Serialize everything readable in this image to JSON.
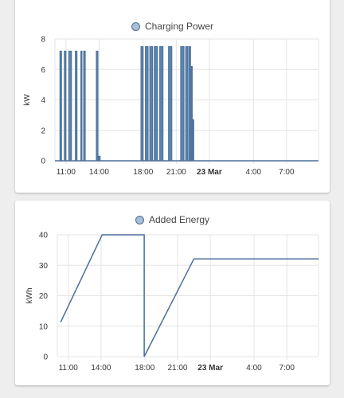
{
  "colors": {
    "series": "#4a6f99",
    "series_fill": "#5b84ad",
    "swatch_fill": "#a8bfd6",
    "grid": "#e4e4e4",
    "card": "#ffffff",
    "background": "#eeeeee"
  },
  "charging_card": {
    "legend_label": "Charging Power",
    "swatch_icon": "legend-circle-icon"
  },
  "energy_card": {
    "legend_label": "Added Energy",
    "swatch_icon": "legend-circle-icon"
  },
  "chart_data": [
    {
      "type": "bar",
      "title": "",
      "series": [
        {
          "name": "Charging Power"
        }
      ],
      "xlabel": "",
      "ylabel": "kW",
      "x_unit": "hours since 00:00 on 22 Mar",
      "xlim": [
        10,
        33.9
      ],
      "ylim": [
        0,
        8
      ],
      "yticks": [
        0,
        2,
        4,
        6,
        8
      ],
      "xticks": [
        {
          "label": "11:00",
          "x": 11,
          "bold": false
        },
        {
          "label": "14:00",
          "x": 14,
          "bold": false
        },
        {
          "label": "18:00",
          "x": 18,
          "bold": false
        },
        {
          "label": "21:00",
          "x": 21,
          "bold": false
        },
        {
          "label": "23 Mar",
          "x": 24,
          "bold": true
        },
        {
          "label": "4:00",
          "x": 28,
          "bold": false
        },
        {
          "label": "7:00",
          "x": 31,
          "bold": false
        }
      ],
      "pulses": [
        {
          "start": 10.45,
          "end": 10.6,
          "value": 7.2
        },
        {
          "start": 10.85,
          "end": 11.0,
          "value": 7.2
        },
        {
          "start": 11.25,
          "end": 11.5,
          "value": 7.2
        },
        {
          "start": 11.85,
          "end": 12.0,
          "value": 7.2
        },
        {
          "start": 12.35,
          "end": 12.45,
          "value": 7.2
        },
        {
          "start": 12.6,
          "end": 12.75,
          "value": 7.2
        },
        {
          "start": 13.75,
          "end": 13.9,
          "value": 7.2
        },
        {
          "start": 13.95,
          "end": 14.1,
          "value": 0.3
        },
        {
          "start": 17.8,
          "end": 18.0,
          "value": 7.5
        },
        {
          "start": 18.2,
          "end": 18.45,
          "value": 7.5
        },
        {
          "start": 18.6,
          "end": 18.85,
          "value": 7.5
        },
        {
          "start": 19.0,
          "end": 19.3,
          "value": 7.5
        },
        {
          "start": 19.5,
          "end": 19.8,
          "value": 7.5
        },
        {
          "start": 20.3,
          "end": 20.6,
          "value": 7.5
        },
        {
          "start": 21.4,
          "end": 21.7,
          "value": 7.5
        },
        {
          "start": 21.85,
          "end": 22.05,
          "value": 7.5
        },
        {
          "start": 22.15,
          "end": 22.3,
          "value": 7.5
        },
        {
          "start": 22.35,
          "end": 22.45,
          "value": 6.2
        },
        {
          "start": 22.5,
          "end": 22.55,
          "value": 2.7
        }
      ]
    },
    {
      "type": "line",
      "title": "",
      "series": [
        {
          "name": "Added Energy"
        }
      ],
      "xlabel": "",
      "ylabel": "kWh",
      "x_unit": "hours since 00:00 on 22 Mar",
      "xlim": [
        10,
        33.9
      ],
      "ylim": [
        0,
        40
      ],
      "yticks": [
        0,
        10,
        20,
        30,
        40
      ],
      "xticks": [
        {
          "label": "11:00",
          "x": 11,
          "bold": false
        },
        {
          "label": "14:00",
          "x": 14,
          "bold": false
        },
        {
          "label": "18:00",
          "x": 18,
          "bold": false
        },
        {
          "label": "21:00",
          "x": 21,
          "bold": false
        },
        {
          "label": "23 Mar",
          "x": 24,
          "bold": true
        },
        {
          "label": "4:00",
          "x": 28,
          "bold": false
        },
        {
          "label": "7:00",
          "x": 31,
          "bold": false
        }
      ],
      "points": [
        {
          "x": 10.3,
          "y": 11.3
        },
        {
          "x": 14.1,
          "y": 40
        },
        {
          "x": 17.95,
          "y": 40
        },
        {
          "x": 17.95,
          "y": 0
        },
        {
          "x": 22.5,
          "y": 32.1
        },
        {
          "x": 33.9,
          "y": 32.1
        }
      ]
    }
  ]
}
